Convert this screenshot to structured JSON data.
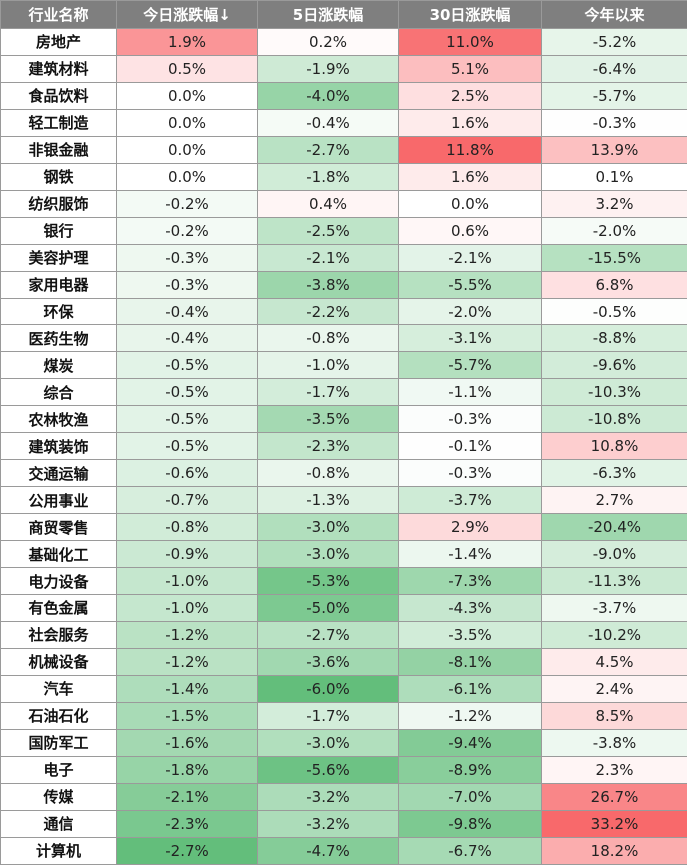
{
  "chart_data": {
    "type": "heatmap",
    "columns": [
      "行业名称",
      "今日涨跌幅↓",
      "5日涨跌幅",
      "30日涨跌幅",
      "今年以来"
    ],
    "colors": {
      "header_bg": "#7f7f7f",
      "header_text": "#ffffff",
      "positive": "#f8696b",
      "negative": "#63be7b",
      "neutral": "#ffffff"
    },
    "rows": [
      {
        "name": "房地产",
        "values": [
          1.9,
          0.2,
          11.0,
          -5.2
        ]
      },
      {
        "name": "建筑材料",
        "values": [
          0.5,
          -1.9,
          5.1,
          -6.4
        ]
      },
      {
        "name": "食品饮料",
        "values": [
          0.0,
          -4.0,
          2.5,
          -5.7
        ]
      },
      {
        "name": "轻工制造",
        "values": [
          0.0,
          -0.4,
          1.6,
          -0.3
        ]
      },
      {
        "name": "非银金融",
        "values": [
          0.0,
          -2.7,
          11.8,
          13.9
        ]
      },
      {
        "name": "钢铁",
        "values": [
          0.0,
          -1.8,
          1.6,
          0.1
        ]
      },
      {
        "name": "纺织服饰",
        "values": [
          -0.2,
          0.4,
          0.0,
          3.2
        ]
      },
      {
        "name": "银行",
        "values": [
          -0.2,
          -2.5,
          0.6,
          -2.0
        ]
      },
      {
        "name": "美容护理",
        "values": [
          -0.3,
          -2.1,
          -2.1,
          -15.5
        ]
      },
      {
        "name": "家用电器",
        "values": [
          -0.3,
          -3.8,
          -5.5,
          6.8
        ]
      },
      {
        "name": "环保",
        "values": [
          -0.4,
          -2.2,
          -2.0,
          -0.5
        ]
      },
      {
        "name": "医药生物",
        "values": [
          -0.4,
          -0.8,
          -3.1,
          -8.8
        ]
      },
      {
        "name": "煤炭",
        "values": [
          -0.5,
          -1.0,
          -5.7,
          -9.6
        ]
      },
      {
        "name": "综合",
        "values": [
          -0.5,
          -1.7,
          -1.1,
          -10.3
        ]
      },
      {
        "name": "农林牧渔",
        "values": [
          -0.5,
          -3.5,
          -0.3,
          -10.8
        ]
      },
      {
        "name": "建筑装饰",
        "values": [
          -0.5,
          -2.3,
          -0.1,
          10.8
        ]
      },
      {
        "name": "交通运输",
        "values": [
          -0.6,
          -0.8,
          -0.3,
          -6.3
        ]
      },
      {
        "name": "公用事业",
        "values": [
          -0.7,
          -1.3,
          -3.7,
          2.7
        ]
      },
      {
        "name": "商贸零售",
        "values": [
          -0.8,
          -3.0,
          2.9,
          -20.4
        ]
      },
      {
        "name": "基础化工",
        "values": [
          -0.9,
          -3.0,
          -1.4,
          -9.0
        ]
      },
      {
        "name": "电力设备",
        "values": [
          -1.0,
          -5.3,
          -7.3,
          -11.3
        ]
      },
      {
        "name": "有色金属",
        "values": [
          -1.0,
          -5.0,
          -4.3,
          -3.7
        ]
      },
      {
        "name": "社会服务",
        "values": [
          -1.2,
          -2.7,
          -3.5,
          -10.2
        ]
      },
      {
        "name": "机械设备",
        "values": [
          -1.2,
          -3.6,
          -8.1,
          4.5
        ]
      },
      {
        "name": "汽车",
        "values": [
          -1.4,
          -6.0,
          -6.1,
          2.4
        ]
      },
      {
        "name": "石油石化",
        "values": [
          -1.5,
          -1.7,
          -1.2,
          8.5
        ]
      },
      {
        "name": "国防军工",
        "values": [
          -1.6,
          -3.0,
          -9.4,
          -3.8
        ]
      },
      {
        "name": "电子",
        "values": [
          -1.8,
          -5.6,
          -8.9,
          2.3
        ]
      },
      {
        "name": "传媒",
        "values": [
          -2.1,
          -3.2,
          -7.0,
          26.7
        ]
      },
      {
        "name": "通信",
        "values": [
          -2.3,
          -3.2,
          -9.8,
          33.2
        ]
      },
      {
        "name": "计算机",
        "values": [
          -2.7,
          -4.7,
          -6.7,
          18.2
        ]
      }
    ]
  }
}
